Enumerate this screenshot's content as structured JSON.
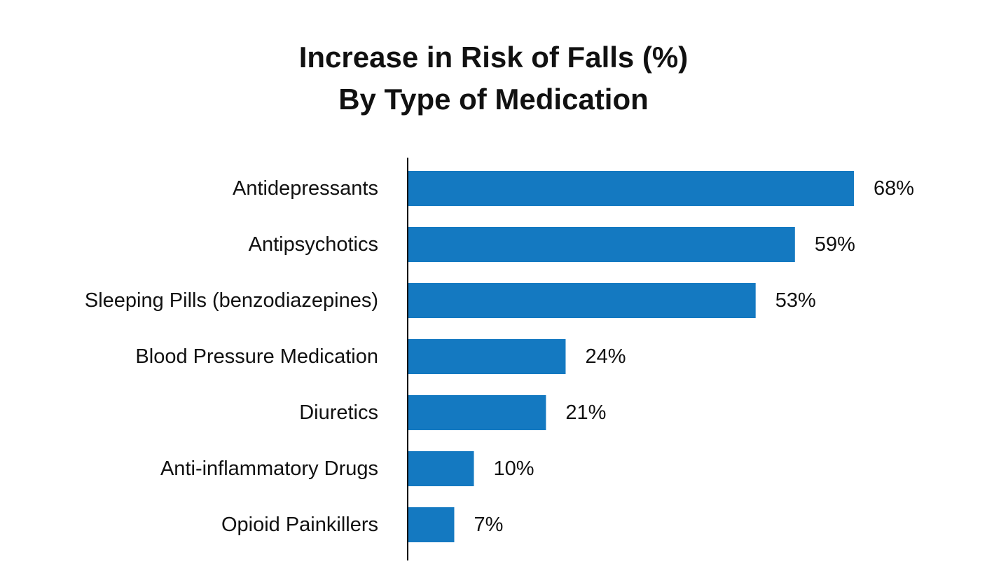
{
  "chart_data": {
    "type": "bar",
    "orientation": "horizontal",
    "title": "Increase in Risk of Falls (%)",
    "subtitle": "By Type of Medication",
    "categories": [
      "Antidepressants",
      "Antipsychotics",
      "Sleeping Pills (benzodiazepines)",
      "Blood Pressure Medication",
      "Diuretics",
      "Anti-inflammatory Drugs",
      "Opioid Painkillers"
    ],
    "values": [
      68,
      59,
      53,
      24,
      21,
      10,
      7
    ],
    "value_labels": [
      "68%",
      "59%",
      "53%",
      "24%",
      "21%",
      "10%",
      "7%"
    ],
    "xlim": [
      0,
      68
    ],
    "grid": false,
    "legend": "none",
    "bar_color": "#1479c1"
  }
}
